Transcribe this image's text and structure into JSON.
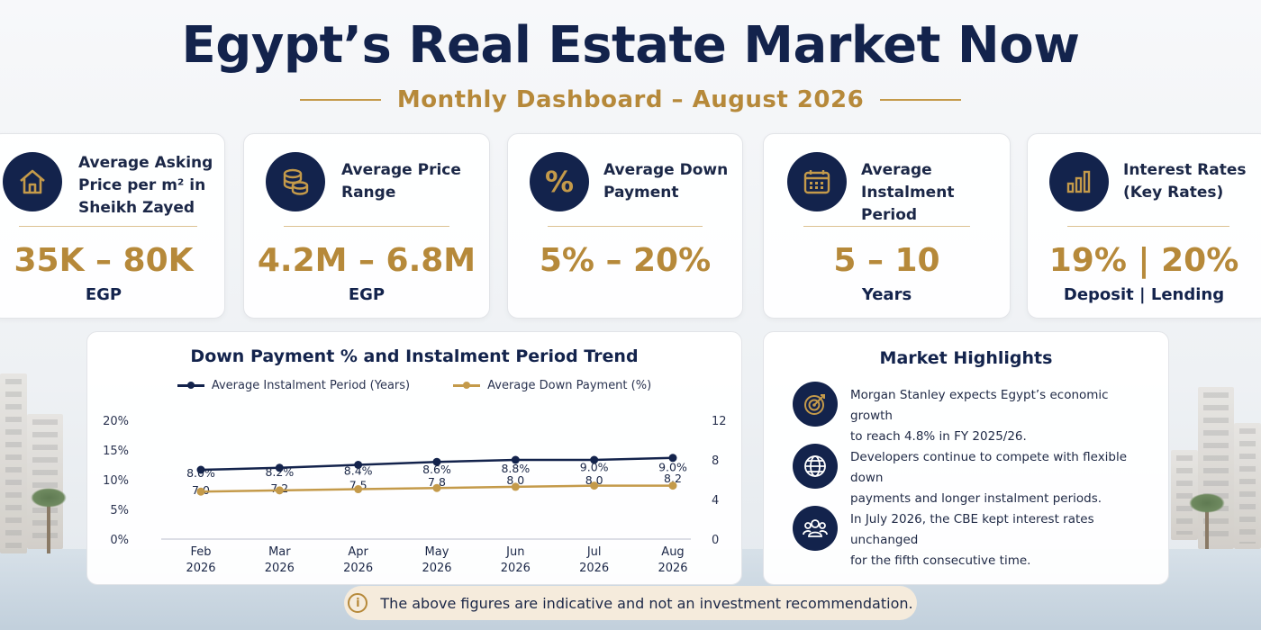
{
  "header": {
    "title": "Egypt’s Real Estate Market Now",
    "subtitle": "Monthly Dashboard – August 2026"
  },
  "kpis": [
    {
      "label_lines": [
        "Average Asking",
        "Price per m² in",
        "Sheikh Zayed"
      ],
      "value": "35K – 80K",
      "unit": "EGP",
      "icon": "house-icon"
    },
    {
      "label_lines": [
        "Average Price",
        "Range"
      ],
      "value": "4.2M – 6.8M",
      "unit": "EGP",
      "icon": "coins-icon"
    },
    {
      "label_lines": [
        "Average Down",
        "Payment"
      ],
      "value": "5% – 20%",
      "unit": "",
      "icon": "percent-icon"
    },
    {
      "label_lines": [
        "Average Instalment",
        "Period"
      ],
      "value": "5 – 10",
      "unit": "Years",
      "icon": "calendar-icon"
    },
    {
      "label_lines": [
        "Interest Rates",
        "(Key Rates)"
      ],
      "value": "19% | 20%",
      "unit": "Deposit | Lending",
      "icon": "bar-chart-icon"
    }
  ],
  "chart_data": {
    "type": "line",
    "title": "Down Payment % and Instalment Period Trend",
    "categories": [
      "Feb\n2026",
      "Mar\n2026",
      "Apr\n2026",
      "May\n2026",
      "Jun\n2026",
      "Jul\n2026",
      "Aug\n2026"
    ],
    "x_tick_labels": [
      [
        "Feb",
        "2026"
      ],
      [
        "Mar",
        "2026"
      ],
      [
        "Apr",
        "2026"
      ],
      [
        "May",
        "2026"
      ],
      [
        "Jun",
        "2026"
      ],
      [
        "Jul",
        "2026"
      ],
      [
        "Aug",
        "2026"
      ]
    ],
    "series": [
      {
        "name": "Average Instalment Period (Years)",
        "axis": "right",
        "color": "#13234c",
        "values": [
          7.0,
          7.2,
          7.5,
          7.8,
          8.0,
          8.0,
          8.2
        ],
        "labels": [
          "7.0",
          "7.2",
          "7.5",
          "7.8",
          "8.0",
          "8.0",
          "8.2"
        ]
      },
      {
        "name": "Average Down Payment (%)",
        "axis": "left",
        "color": "#c49a4a",
        "values": [
          8.0,
          8.2,
          8.4,
          8.6,
          8.8,
          9.0,
          9.0
        ],
        "labels": [
          "8.0%",
          "8.2%",
          "8.4%",
          "8.6%",
          "8.8%",
          "9.0%",
          "9.0%"
        ]
      }
    ],
    "left_axis": {
      "ticks": [
        "20%",
        "15%",
        "10%",
        "5%",
        "0%"
      ],
      "range": [
        0,
        20
      ]
    },
    "right_axis": {
      "ticks": [
        "12",
        "8",
        "4",
        "0"
      ],
      "range": [
        0,
        12
      ]
    },
    "legend_position": "top-center",
    "grid": false
  },
  "highlights": {
    "title": "Market Highlights",
    "items": [
      {
        "icon": "target-icon",
        "lines": [
          "Morgan Stanley expects Egypt’s economic growth",
          "to reach 4.8% in FY 2025/26."
        ]
      },
      {
        "icon": "globe-icon",
        "lines": [
          "Developers continue to compete with flexible down",
          "payments and longer instalment periods."
        ]
      },
      {
        "icon": "people-icon",
        "lines": [
          "In July 2026, the CBE kept interest rates unchanged",
          "for the fifth consecutive time."
        ]
      }
    ]
  },
  "disclaimer": {
    "icon": "info-icon",
    "info_glyph": "i",
    "text": "The above figures are indicative and not an investment recommendation."
  },
  "colors": {
    "navy": "#13234c",
    "gold": "#c49a4a"
  }
}
